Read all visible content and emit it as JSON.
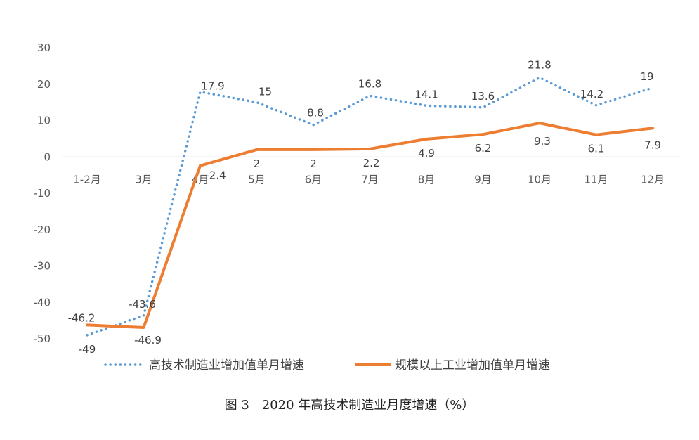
{
  "caption": "图 3　2020 年高技术制造业月度增速（%）",
  "chart_data": {
    "type": "line",
    "categories": [
      "1-2月",
      "3月",
      "4月",
      "5月",
      "6月",
      "7月",
      "8月",
      "9月",
      "10月",
      "11月",
      "12月"
    ],
    "series": [
      {
        "name": "高技术制造业增加值单月增速",
        "x": [
          0,
          1,
          2,
          3,
          4,
          5,
          6,
          7,
          8,
          9,
          10
        ],
        "values": [
          -49,
          -43.6,
          17.9,
          15,
          8.8,
          16.8,
          14.1,
          13.6,
          21.8,
          14.2,
          19
        ],
        "color": "#5B9BD5",
        "style": "dotted"
      },
      {
        "name": "规模以上工业增加值单月增速",
        "x": [
          0,
          1,
          2,
          3,
          4,
          5,
          6,
          7,
          8,
          9,
          10
        ],
        "values": [
          -46.2,
          -46.9,
          -2.4,
          2,
          2,
          2.2,
          4.9,
          6.2,
          9.3,
          6.1,
          7.9
        ],
        "color": "#ED7D31",
        "style": "solid"
      }
    ],
    "yticks": [
      "30",
      "20",
      "10",
      "0",
      "-10",
      "-20",
      "-30",
      "-40",
      "-50"
    ],
    "ylim": [
      -50,
      30
    ],
    "grid": false,
    "legend": "bottom"
  }
}
